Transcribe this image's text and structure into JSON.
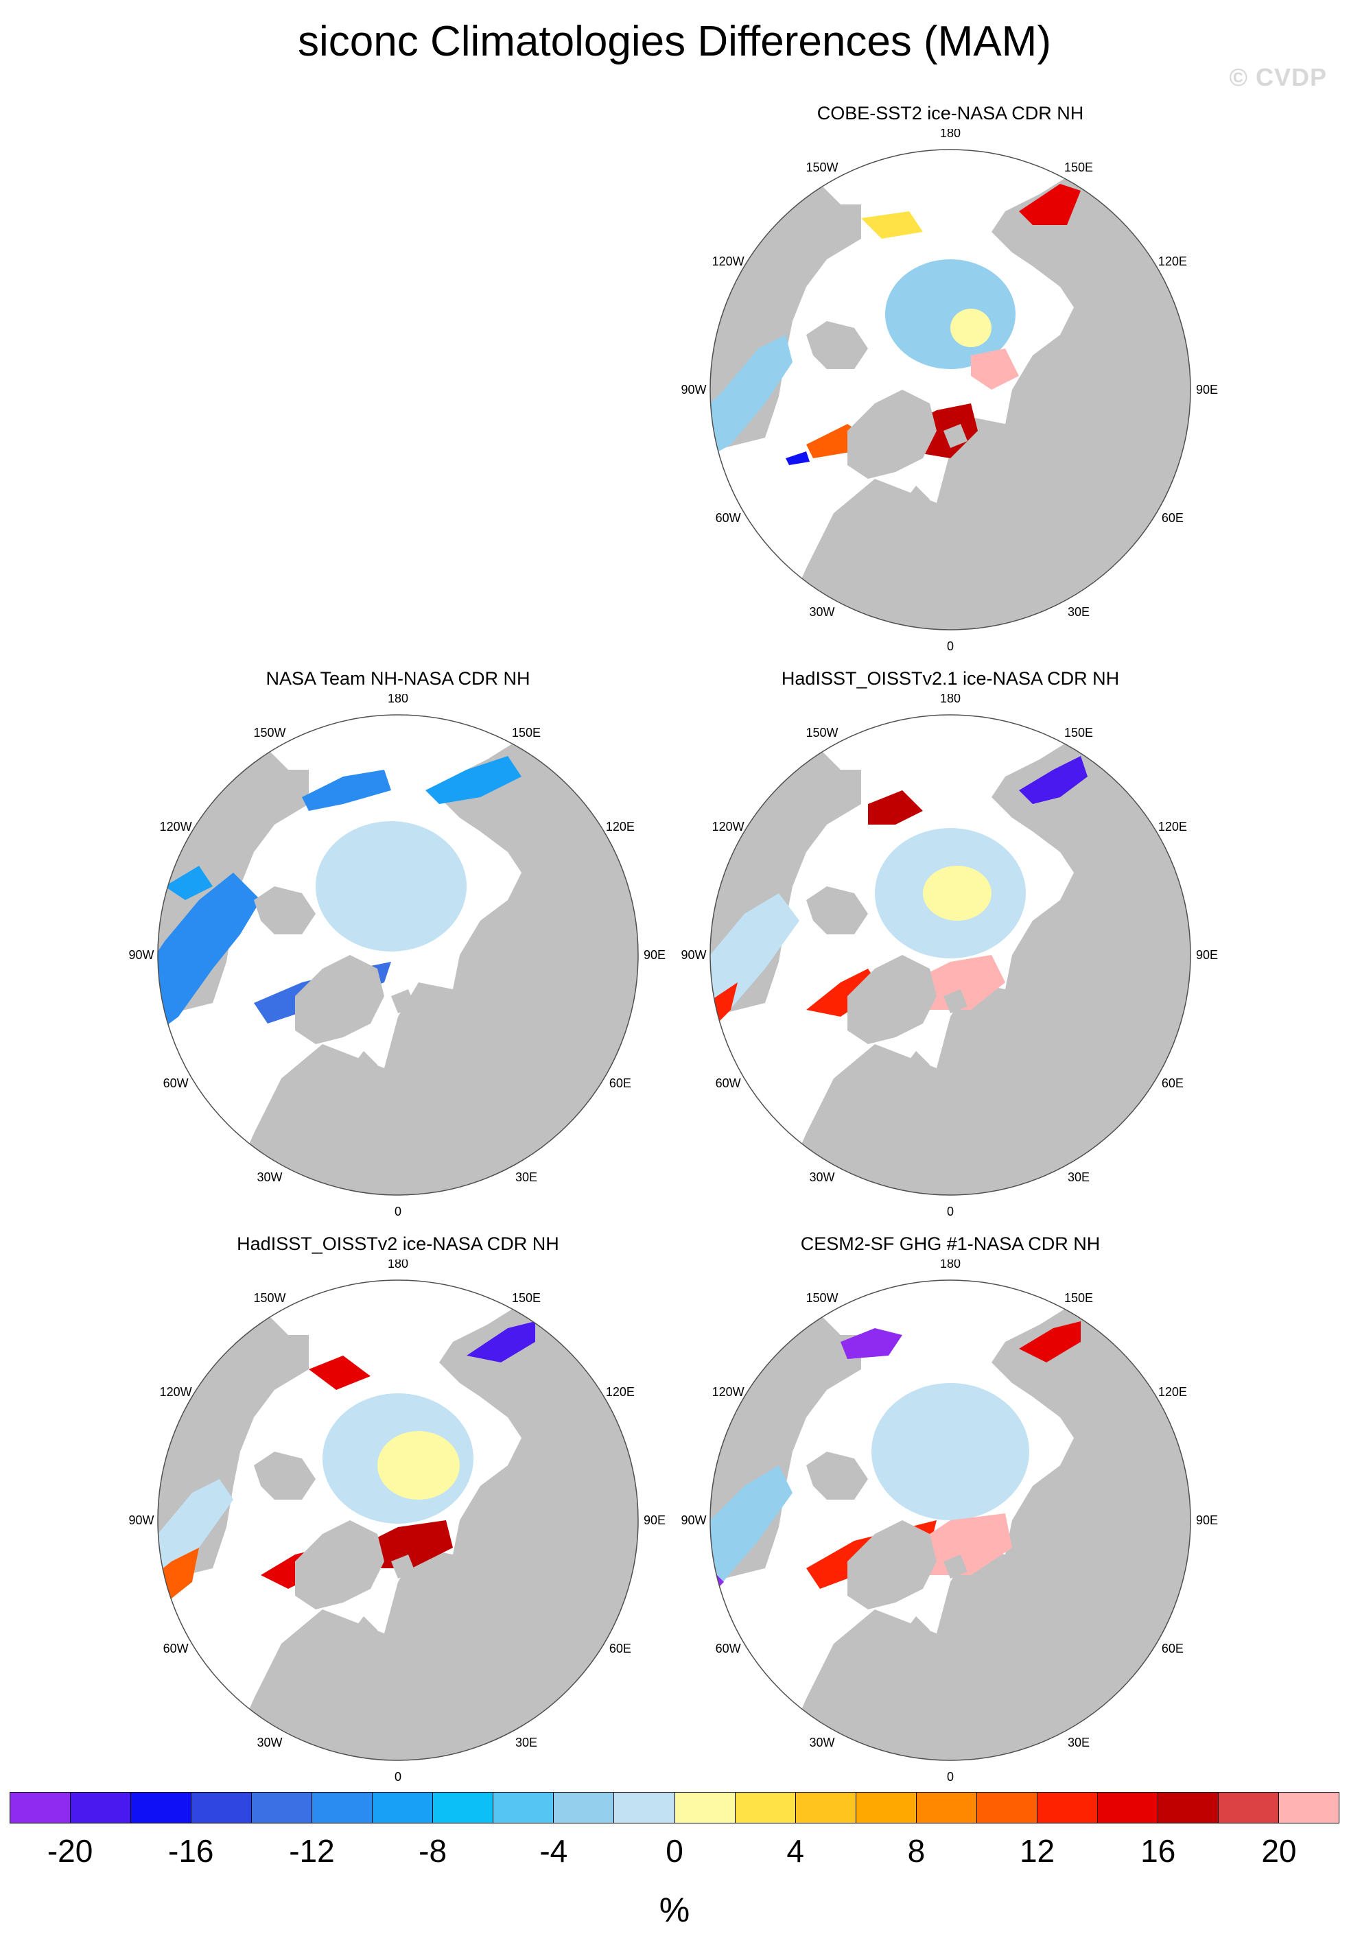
{
  "figure": {
    "title": "siconc Climatologies Differences (MAM)",
    "copyright": "© CVDP"
  },
  "panels": [
    {
      "title": "COBE-SST2 ice-NASA CDR NH",
      "variant": "cobe"
    },
    {
      "title": "NASA Team NH-NASA CDR NH",
      "variant": "nasateam"
    },
    {
      "title": "HadISST_OISSTv2.1 ice-NASA CDR NH",
      "variant": "hadv21"
    },
    {
      "title": "HadISST_OISSTv2 ice-NASA CDR NH",
      "variant": "hadv2"
    },
    {
      "title": "CESM2-SF GHG #1-NASA CDR NH",
      "variant": "cesm"
    }
  ],
  "longitude_labels": [
    {
      "text": "180",
      "lon": 180
    },
    {
      "text": "150E",
      "lon": 150
    },
    {
      "text": "120E",
      "lon": 120
    },
    {
      "text": "90E",
      "lon": 90
    },
    {
      "text": "60E",
      "lon": 60
    },
    {
      "text": "30E",
      "lon": 30
    },
    {
      "text": "0",
      "lon": 0
    },
    {
      "text": "30W",
      "lon": -30
    },
    {
      "text": "60W",
      "lon": -60
    },
    {
      "text": "90W",
      "lon": -90
    },
    {
      "text": "120W",
      "lon": -120
    },
    {
      "text": "150W",
      "lon": -150
    }
  ],
  "colors": {
    "land": "#c0c0c0",
    "ocean": "#ffffff",
    "coast": "#303030"
  },
  "colorbar": {
    "colors": [
      "#8f2bf0",
      "#4a19f0",
      "#0f10f5",
      "#2f47e0",
      "#3a70e3",
      "#2a8bf0",
      "#18a0f6",
      "#0dbff7",
      "#55c5f4",
      "#94d0ee",
      "#c2e2f4",
      "#fefaa4",
      "#ffe346",
      "#ffc41d",
      "#ffa800",
      "#ff8800",
      "#ff5f00",
      "#ff2200",
      "#e60000",
      "#c00000",
      "#dc4144",
      "#ffb3b3"
    ],
    "tick_labels": [
      "-20",
      "-16",
      "-12",
      "-8",
      "-4",
      "0",
      "4",
      "8",
      "12",
      "16",
      "20"
    ],
    "tick_values": [
      -20,
      -16,
      -12,
      -8,
      -4,
      0,
      4,
      8,
      12,
      16,
      20
    ],
    "min": -22,
    "max": 22,
    "units": "%"
  }
}
